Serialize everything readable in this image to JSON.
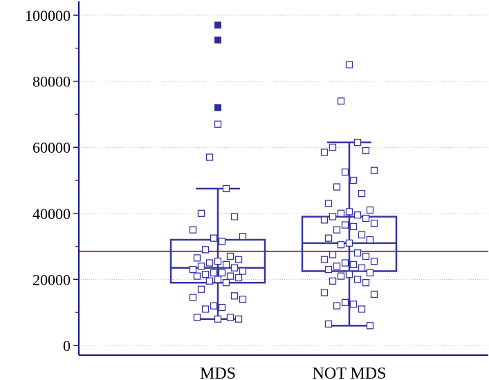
{
  "chart_data": {
    "type": "box",
    "title": "",
    "xlabel": "",
    "ylabel": "",
    "ylim": [
      0,
      100000
    ],
    "y_ticks": [
      0,
      20000,
      40000,
      60000,
      80000,
      100000
    ],
    "y_tick_labels": [
      "0",
      "20000",
      "40000",
      "60000",
      "80000",
      "100000"
    ],
    "grid": true,
    "reference_line": 28500,
    "categories": [
      "MDS",
      "NOT MDS"
    ],
    "boxes": [
      {
        "name": "MDS",
        "q1": 19000,
        "median": 23500,
        "q3": 32000,
        "whisker_low": 8000,
        "whisker_high": 47500,
        "outliers": [
          97000,
          92500,
          72000
        ],
        "points": [
          67000,
          57000,
          47500,
          40000,
          39000,
          35000,
          33000,
          32500,
          31500,
          29000,
          27000,
          26500,
          26000,
          25500,
          25000,
          24500,
          24000,
          23500,
          23000,
          22500,
          22000,
          22000,
          21500,
          21000,
          21000,
          20500,
          20000,
          19500,
          19000,
          17000,
          15000,
          14500,
          14000,
          12000,
          11500,
          11000,
          8500,
          8500,
          8000,
          8000
        ]
      },
      {
        "name": "NOT MDS",
        "q1": 22500,
        "median": 31000,
        "q3": 39000,
        "whisker_low": 6000,
        "whisker_high": 61500,
        "outliers": [],
        "points": [
          85000,
          74000,
          61500,
          60000,
          59000,
          58500,
          53000,
          52500,
          50000,
          48000,
          46000,
          43000,
          41000,
          40500,
          40000,
          39500,
          39000,
          38500,
          38000,
          37000,
          36500,
          36000,
          35000,
          33500,
          32500,
          32000,
          31000,
          30500,
          28000,
          27500,
          27000,
          26000,
          25500,
          25000,
          24500,
          24000,
          23500,
          23000,
          22000,
          21500,
          21000,
          20000,
          19500,
          19000,
          16000,
          15500,
          13000,
          12500,
          12000,
          11000,
          6500,
          6000
        ]
      }
    ]
  },
  "colors": {
    "axis": "#14148a",
    "box": "#3535a0",
    "reference_line": "#a01818",
    "tick_mark": "#a01818",
    "grid": "#9fc3e8",
    "outlier_fill": "#2e2e98",
    "point_fill": "#ffffff"
  }
}
